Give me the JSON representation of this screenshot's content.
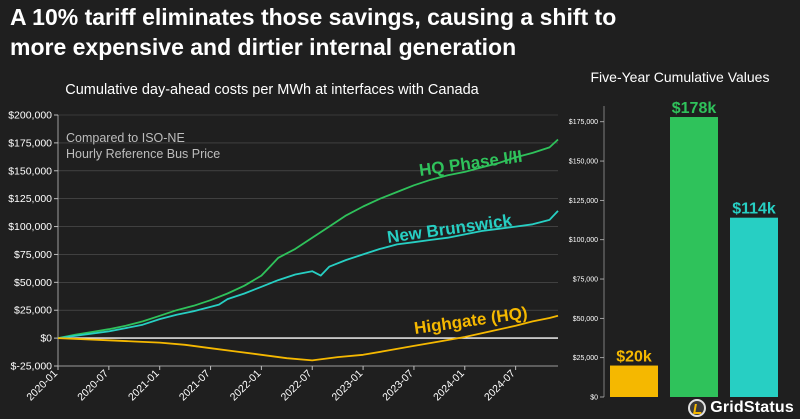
{
  "headline": {
    "line1": "A 10% tariff eliminates those savings, causing a shift to",
    "line2": "more expensive and dirtier internal generation"
  },
  "logo": {
    "text": "GridStatus",
    "icon": "grid-status-logo-icon"
  },
  "colors": {
    "background": "#1f1f1f",
    "hq_phase": "#2fc25b",
    "new_brunswick": "#27cfc3",
    "highgate": "#f5b800",
    "zero_line": "#ffffff",
    "grid": "#555555",
    "text": "#ffffff",
    "muted_text": "#bdbdbd"
  },
  "chart_data": [
    {
      "type": "line",
      "title": "Cumulative day-ahead costs per MWh at interfaces with Canada",
      "annotation": "Compared to ISO-NE\nHourly Reference Bus Price",
      "xlabel": "",
      "ylabel": "",
      "ylim": [
        -25000,
        200000
      ],
      "yticks": [
        -25000,
        0,
        25000,
        50000,
        75000,
        100000,
        125000,
        150000,
        175000,
        200000
      ],
      "ytick_labels": [
        "$-25,000",
        "$0",
        "$25,000",
        "$50,000",
        "$75,000",
        "$100,000",
        "$125,000",
        "$150,000",
        "$175,000",
        "$200,000"
      ],
      "xlim": [
        "2020-01",
        "2024-12"
      ],
      "xtick_labels": [
        "2020-01",
        "2020-07",
        "2021-01",
        "2021-07",
        "2022-01",
        "2022-07",
        "2023-01",
        "2023-07",
        "2024-01",
        "2024-07"
      ],
      "grid": true,
      "legend": "none",
      "series": [
        {
          "name": "HQ Phase I/II",
          "x": [
            "2020-01",
            "2020-03",
            "2020-05",
            "2020-07",
            "2020-09",
            "2020-11",
            "2021-01",
            "2021-03",
            "2021-05",
            "2021-07",
            "2021-09",
            "2021-11",
            "2022-01",
            "2022-02",
            "2022-03",
            "2022-05",
            "2022-07",
            "2022-09",
            "2022-11",
            "2023-01",
            "2023-03",
            "2023-05",
            "2023-07",
            "2023-09",
            "2023-11",
            "2024-01",
            "2024-03",
            "2024-05",
            "2024-07",
            "2024-09",
            "2024-11",
            "2024-12"
          ],
          "values": [
            0,
            3000,
            5500,
            8000,
            11000,
            15000,
            20000,
            25000,
            29000,
            34000,
            40000,
            47000,
            56000,
            64000,
            72000,
            80000,
            90000,
            100000,
            110000,
            118000,
            125000,
            131000,
            137000,
            142000,
            146000,
            149000,
            153000,
            157000,
            162000,
            166000,
            171000,
            178000
          ]
        },
        {
          "name": "New Brunswick",
          "x": [
            "2020-01",
            "2020-03",
            "2020-05",
            "2020-07",
            "2020-09",
            "2020-11",
            "2021-01",
            "2021-03",
            "2021-05",
            "2021-07",
            "2021-08",
            "2021-09",
            "2021-11",
            "2022-01",
            "2022-03",
            "2022-05",
            "2022-07",
            "2022-08",
            "2022-09",
            "2022-11",
            "2023-01",
            "2023-03",
            "2023-05",
            "2023-07",
            "2023-09",
            "2023-11",
            "2024-01",
            "2024-03",
            "2024-05",
            "2024-07",
            "2024-09",
            "2024-11",
            "2024-12"
          ],
          "values": [
            0,
            2000,
            4000,
            6000,
            9000,
            12000,
            17000,
            21000,
            24000,
            28000,
            30000,
            35000,
            40000,
            46000,
            52000,
            57000,
            60000,
            56000,
            64000,
            70000,
            75000,
            80000,
            84000,
            86000,
            88000,
            90000,
            93000,
            96000,
            98000,
            100000,
            102000,
            106000,
            114000
          ]
        },
        {
          "name": "Highgate (HQ)",
          "x": [
            "2020-01",
            "2020-04",
            "2020-07",
            "2020-10",
            "2021-01",
            "2021-04",
            "2021-07",
            "2021-10",
            "2022-01",
            "2022-04",
            "2022-07",
            "2022-10",
            "2023-01",
            "2023-04",
            "2023-07",
            "2023-10",
            "2024-01",
            "2024-04",
            "2024-07",
            "2024-09",
            "2024-11",
            "2024-12"
          ],
          "values": [
            0,
            -1000,
            -2000,
            -3000,
            -4000,
            -6000,
            -9000,
            -12000,
            -15000,
            -18000,
            -20000,
            -17000,
            -15000,
            -11000,
            -7000,
            -3000,
            1000,
            6000,
            11000,
            15000,
            18000,
            20000
          ]
        }
      ]
    },
    {
      "type": "bar",
      "title": "Five-Year Cumulative Values",
      "ylim": [
        0,
        185000
      ],
      "yticks": [
        0,
        25000,
        50000,
        75000,
        100000,
        125000,
        150000,
        175000
      ],
      "ytick_labels": [
        "$0",
        "$25,000",
        "$50,000",
        "$75,000",
        "$100,000",
        "$125,000",
        "$150,000",
        "$175,000"
      ],
      "categories": [
        "Highgate (HQ)",
        "HQ Phase I/II",
        "New Brunswick"
      ],
      "values": [
        20000,
        178000,
        114000
      ],
      "data_labels": [
        "$20k",
        "$178k",
        "$114k"
      ],
      "grid": false
    }
  ]
}
